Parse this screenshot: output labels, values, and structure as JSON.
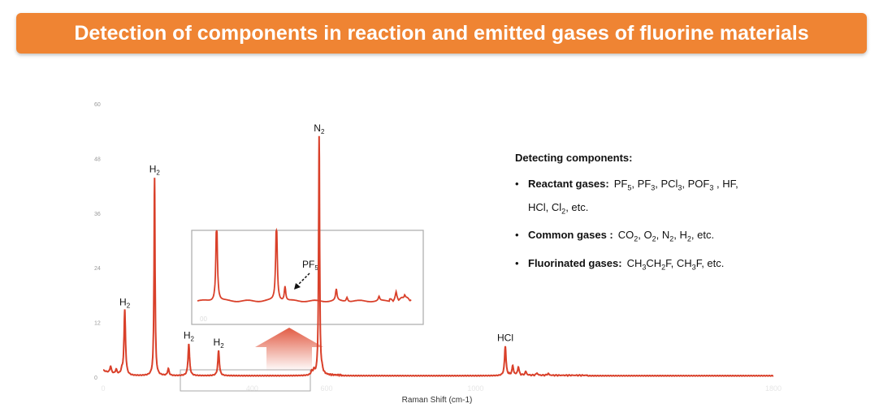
{
  "title": "Detection of components in reaction and emitted gases of fluorine materials",
  "colors": {
    "banner": "#ef8433",
    "line": "#d9402a",
    "axis_text": "#999999"
  },
  "chart_data": {
    "type": "line",
    "title": "",
    "xlabel": "Raman Shift (cm-1)",
    "ylabel": "",
    "xlim": [
      0,
      1800
    ],
    "ylim": [
      0,
      60
    ],
    "yticks": [
      0,
      12,
      24,
      36,
      48,
      60
    ],
    "xticks": [
      0,
      400,
      600,
      1000,
      1800
    ],
    "xtick_labels": [
      "0",
      "400",
      "600",
      "1000",
      "1800"
    ],
    "peaks": [
      {
        "x": 20,
        "y": 1.5
      },
      {
        "x": 35,
        "y": 1.0
      },
      {
        "x": 50,
        "y": 0.8
      },
      {
        "x": 58,
        "y": 14.3,
        "label": "H2"
      },
      {
        "x": 138,
        "y": 43.5,
        "label": "H2"
      },
      {
        "x": 175,
        "y": 1.5
      },
      {
        "x": 230,
        "y": 7.0,
        "label": "H2"
      },
      {
        "x": 310,
        "y": 5.5,
        "label": "H2"
      },
      {
        "x": 560,
        "y": 0.8
      },
      {
        "x": 566,
        "y": 1.0
      },
      {
        "x": 580,
        "y": 52.5,
        "label": "N2"
      },
      {
        "x": 588,
        "y": 0.8
      },
      {
        "x": 1080,
        "y": 6.5,
        "label": "HCl"
      },
      {
        "x": 1100,
        "y": 2.0
      },
      {
        "x": 1115,
        "y": 1.8
      },
      {
        "x": 1135,
        "y": 0.8
      },
      {
        "x": 1165,
        "y": 0.5
      },
      {
        "x": 1195,
        "y": 0.4
      }
    ],
    "inset": {
      "label": "PF5",
      "peaks": [
        {
          "x": 0.09,
          "y": 1.2
        },
        {
          "x": 0.37,
          "y": 1.2
        },
        {
          "x": 0.41,
          "y": 0.2
        },
        {
          "x": 0.65,
          "y": 0.16
        },
        {
          "x": 0.7,
          "y": 0.06
        },
        {
          "x": 0.85,
          "y": 0.06
        },
        {
          "x": 0.93,
          "y": 0.1
        },
        {
          "x": 0.97,
          "y": 0.07
        }
      ]
    }
  },
  "legend": {
    "heading": "Detecting components:",
    "items": [
      {
        "label": "Reactant gases:",
        "value_html": "PF<sub>5</sub>, PF<sub>3</sub>, PCl<sub>3</sub>, POF<sub>3</sub> , HF,",
        "value2_html": "HCl, Cl<sub>2</sub>, etc."
      },
      {
        "label": "Common gases :",
        "value_html": "CO<sub>2</sub>, O<sub>2</sub>, N<sub>2</sub>, H<sub>2</sub>, etc.",
        "value2_html": ""
      },
      {
        "label": "Fluorinated gases:",
        "value_html": "CH<sub>3</sub>CH<sub>2</sub>F, CH<sub>3</sub>F, etc.",
        "value2_html": ""
      }
    ]
  }
}
